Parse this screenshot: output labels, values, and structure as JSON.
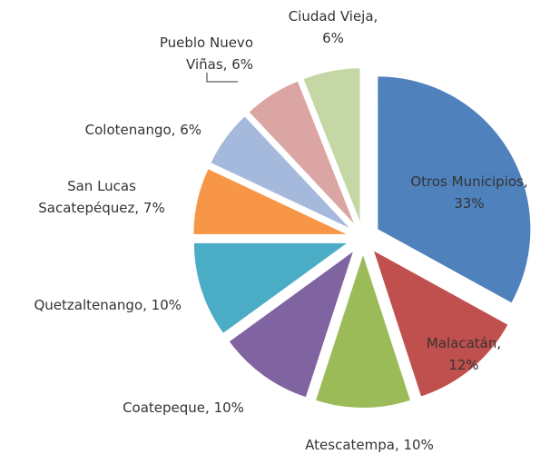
{
  "chart_data": {
    "type": "pie",
    "labels": [
      "Otros Municipios,\n33%",
      "Malacatán,\n12%",
      "Atescatempa, 10%",
      "Coatepeque, 10%",
      "Quetzaltenango, 10%",
      "San Lucas\nSacatepéquez, 7%",
      "Colotenango, 6%",
      "Pueblo Nuevo\nViñas, 6%",
      "Ciudad Vieja,\n6%"
    ],
    "values": [
      33,
      12,
      10,
      10,
      10,
      7,
      6,
      6,
      6
    ],
    "colors": [
      "#4f81bd",
      "#c0504d",
      "#9bbb59",
      "#8064a2",
      "#4bacc6",
      "#f79646",
      "#a5b9dc",
      "#dba5a4",
      "#c4d7a4"
    ],
    "exploded": true
  }
}
